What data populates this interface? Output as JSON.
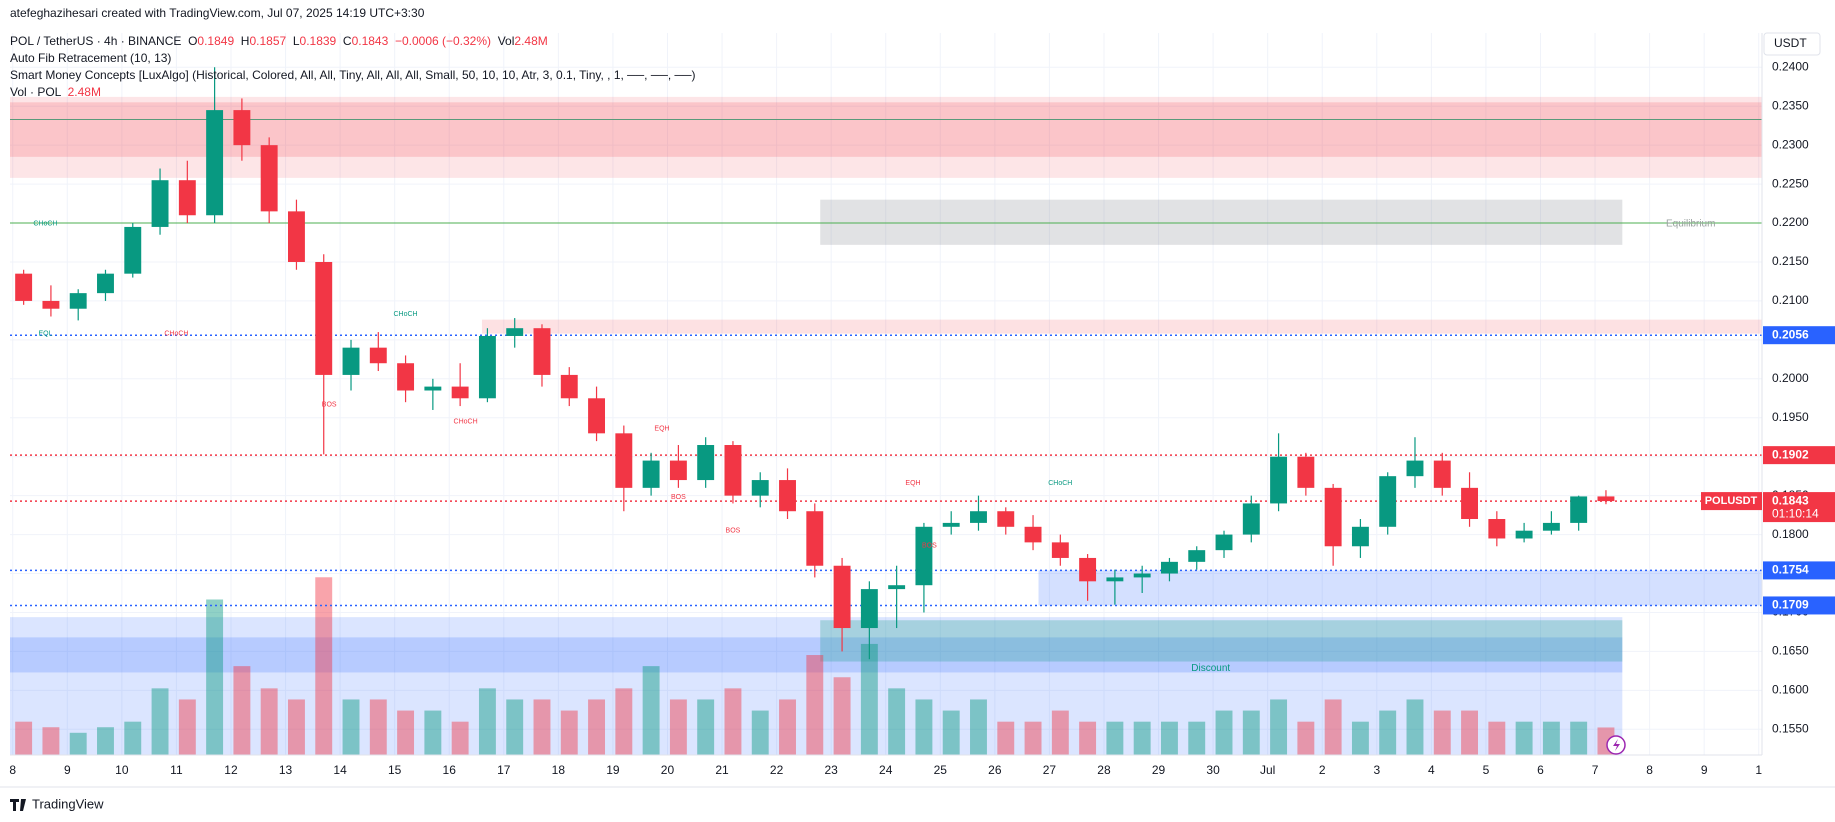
{
  "chart_data": {
    "type": "candlestick",
    "header": {
      "credit": "atefeghazihesari created with TradingView.com, Jul 07, 2025 14:19 UTC+3:30",
      "symbol": "POL / TetherUS · 4h · BINANCE",
      "ohlc_letters": [
        "O",
        "H",
        "L",
        "C"
      ],
      "change": "−0.0006 (−0.32%)",
      "vol_label": "Vol",
      "vol_value": "2.48M",
      "indicators": [
        "Auto Fib Retracement (10, 13)",
        "Smart Money Concepts [LuxAlgo] (Historical, Colored, All, All, Tiny, All, All, All, Small, 50, 10, 10, Atr, 3, 0.1, Tiny, , 1, ──, ──, ──)"
      ],
      "vol_indicator": "Vol · POL",
      "vol_indicator_value": "2.48M",
      "currency": "USDT",
      "brand": "TradingView"
    },
    "x": [
      0.2,
      0.7,
      1.2,
      1.7,
      2.2,
      2.7,
      3.2,
      3.7,
      4.2,
      4.7,
      5.2,
      5.7,
      6.2,
      6.7,
      7.2,
      7.7,
      8.2,
      8.7,
      9.2,
      9.7,
      10.2,
      10.7,
      11.2,
      11.7,
      12.2,
      12.7,
      13.2,
      13.7,
      14.2,
      14.7,
      15.2,
      15.7,
      16.2,
      16.7,
      17.2,
      17.7,
      18.2,
      18.7,
      19.2,
      19.7,
      20.2,
      20.7,
      21.2,
      21.7,
      22.2,
      22.7,
      23.2,
      23.7,
      24.2,
      24.7,
      25.2,
      25.7,
      26.2,
      26.7,
      27.2,
      27.7,
      28.2,
      28.7,
      29.2
    ],
    "ohlc": [
      [
        0.2135,
        0.214,
        0.2095,
        0.21
      ],
      [
        0.21,
        0.212,
        0.208,
        0.209
      ],
      [
        0.209,
        0.2115,
        0.2075,
        0.211
      ],
      [
        0.211,
        0.214,
        0.21,
        0.2135
      ],
      [
        0.2135,
        0.22,
        0.213,
        0.2195
      ],
      [
        0.2195,
        0.227,
        0.2185,
        0.2255
      ],
      [
        0.2255,
        0.228,
        0.22,
        0.221
      ],
      [
        0.221,
        0.24,
        0.22,
        0.2345
      ],
      [
        0.2345,
        0.236,
        0.228,
        0.23
      ],
      [
        0.23,
        0.231,
        0.22,
        0.2215
      ],
      [
        0.2215,
        0.223,
        0.214,
        0.215
      ],
      [
        0.215,
        0.216,
        0.1903,
        0.2005
      ],
      [
        0.2005,
        0.205,
        0.1985,
        0.204
      ],
      [
        0.204,
        0.206,
        0.201,
        0.202
      ],
      [
        0.202,
        0.203,
        0.197,
        0.1985
      ],
      [
        0.1985,
        0.2,
        0.196,
        0.199
      ],
      [
        0.199,
        0.202,
        0.1965,
        0.1975
      ],
      [
        0.1975,
        0.2065,
        0.197,
        0.2055
      ],
      [
        0.2055,
        0.2078,
        0.204,
        0.2065
      ],
      [
        0.2065,
        0.207,
        0.199,
        0.2005
      ],
      [
        0.2005,
        0.2015,
        0.1965,
        0.1975
      ],
      [
        0.1975,
        0.199,
        0.192,
        0.193
      ],
      [
        0.193,
        0.194,
        0.183,
        0.186
      ],
      [
        0.186,
        0.1905,
        0.185,
        0.1895
      ],
      [
        0.1895,
        0.1915,
        0.186,
        0.187
      ],
      [
        0.187,
        0.1925,
        0.186,
        0.1915
      ],
      [
        0.1915,
        0.192,
        0.184,
        0.185
      ],
      [
        0.185,
        0.188,
        0.1835,
        0.187
      ],
      [
        0.187,
        0.1885,
        0.182,
        0.183
      ],
      [
        0.183,
        0.184,
        0.1745,
        0.176
      ],
      [
        0.176,
        0.177,
        0.165,
        0.168
      ],
      [
        0.168,
        0.174,
        0.164,
        0.173
      ],
      [
        0.173,
        0.176,
        0.168,
        0.1735
      ],
      [
        0.1735,
        0.1815,
        0.17,
        0.181
      ],
      [
        0.181,
        0.183,
        0.18,
        0.1815
      ],
      [
        0.1815,
        0.185,
        0.1805,
        0.183
      ],
      [
        0.183,
        0.1835,
        0.18,
        0.181
      ],
      [
        0.181,
        0.1825,
        0.178,
        0.179
      ],
      [
        0.179,
        0.18,
        0.176,
        0.177
      ],
      [
        0.177,
        0.1775,
        0.1715,
        0.174
      ],
      [
        0.174,
        0.1755,
        0.171,
        0.1745
      ],
      [
        0.1745,
        0.176,
        0.1725,
        0.175
      ],
      [
        0.175,
        0.177,
        0.174,
        0.1765
      ],
      [
        0.1765,
        0.1785,
        0.1755,
        0.178
      ],
      [
        0.178,
        0.1805,
        0.177,
        0.18
      ],
      [
        0.18,
        0.185,
        0.179,
        0.184
      ],
      [
        0.184,
        0.193,
        0.183,
        0.19
      ],
      [
        0.19,
        0.1905,
        0.185,
        0.186
      ],
      [
        0.186,
        0.1865,
        0.176,
        0.1785
      ],
      [
        0.1785,
        0.182,
        0.177,
        0.181
      ],
      [
        0.181,
        0.188,
        0.18,
        0.1875
      ],
      [
        0.1875,
        0.1925,
        0.186,
        0.1895
      ],
      [
        0.1895,
        0.1905,
        0.185,
        0.186
      ],
      [
        0.186,
        0.188,
        0.181,
        0.182
      ],
      [
        0.182,
        0.183,
        0.1785,
        0.1795
      ],
      [
        0.1795,
        0.1815,
        0.179,
        0.1805
      ],
      [
        0.1805,
        0.183,
        0.18,
        0.1815
      ],
      [
        0.1815,
        0.185,
        0.1805,
        0.1849
      ],
      [
        0.1849,
        0.1857,
        0.1839,
        0.1843
      ]
    ],
    "volume": [
      3,
      2.5,
      2,
      2.5,
      3,
      6,
      5,
      14,
      8,
      6,
      5,
      16,
      5,
      5,
      4,
      4,
      3,
      6,
      5,
      5,
      4,
      5,
      6,
      8,
      5,
      5,
      6,
      4,
      5,
      9,
      7,
      10,
      6,
      5,
      4,
      5,
      3,
      3,
      4,
      3,
      3,
      3,
      3,
      3,
      4,
      4,
      5,
      3,
      5,
      3,
      4,
      5,
      4,
      4,
      3,
      3,
      3,
      3,
      2.48
    ],
    "up_color": "#089981",
    "down_color": "#f23645",
    "xlim": [
      -0.05,
      32.06
    ],
    "xticks": [
      {
        "value": 0,
        "label": "8"
      },
      {
        "value": 1,
        "label": "9"
      },
      {
        "value": 2,
        "label": "10"
      },
      {
        "value": 3,
        "label": "11"
      },
      {
        "value": 4,
        "label": "12"
      },
      {
        "value": 5,
        "label": "13"
      },
      {
        "value": 6,
        "label": "14"
      },
      {
        "value": 7,
        "label": "15"
      },
      {
        "value": 8,
        "label": "16"
      },
      {
        "value": 9,
        "label": "17"
      },
      {
        "value": 10,
        "label": "18"
      },
      {
        "value": 11,
        "label": "19"
      },
      {
        "value": 12,
        "label": "20"
      },
      {
        "value": 13,
        "label": "21"
      },
      {
        "value": 14,
        "label": "22"
      },
      {
        "value": 15,
        "label": "23"
      },
      {
        "value": 16,
        "label": "24"
      },
      {
        "value": 17,
        "label": "25"
      },
      {
        "value": 18,
        "label": "26"
      },
      {
        "value": 19,
        "label": "27"
      },
      {
        "value": 20,
        "label": "28"
      },
      {
        "value": 21,
        "label": "29"
      },
      {
        "value": 22,
        "label": "30"
      },
      {
        "value": 23,
        "label": "Jul"
      },
      {
        "value": 24,
        "label": "2"
      },
      {
        "value": 25,
        "label": "3"
      },
      {
        "value": 26,
        "label": "4"
      },
      {
        "value": 27,
        "label": "5"
      },
      {
        "value": 28,
        "label": "6"
      },
      {
        "value": 29,
        "label": "7"
      },
      {
        "value": 30,
        "label": "8"
      },
      {
        "value": 31,
        "label": "9"
      },
      {
        "value": 32,
        "label": "1"
      }
    ],
    "ylim": [
      0.1517,
      0.2444
    ],
    "yticks": [
      {
        "value": 0.155,
        "label": "0.1550"
      },
      {
        "value": 0.16,
        "label": "0.1600"
      },
      {
        "value": 0.165,
        "label": "0.1650"
      },
      {
        "value": 0.17,
        "label": "0.1700"
      },
      {
        "value": 0.175,
        "label": "0.1750"
      },
      {
        "value": 0.18,
        "label": "0.1800"
      },
      {
        "value": 0.185,
        "label": "0.1850"
      },
      {
        "value": 0.19,
        "label": "0.1900"
      },
      {
        "value": 0.195,
        "label": "0.1950"
      },
      {
        "value": 0.2,
        "label": "0.2000"
      },
      {
        "value": 0.205,
        "label": "0.2050"
      },
      {
        "value": 0.21,
        "label": "0.2100"
      },
      {
        "value": 0.215,
        "label": "0.2150"
      },
      {
        "value": 0.22,
        "label": "0.2200"
      },
      {
        "value": 0.225,
        "label": "0.2250"
      },
      {
        "value": 0.23,
        "label": "0.2300"
      },
      {
        "value": 0.235,
        "label": "0.2350"
      },
      {
        "value": 0.24,
        "label": "0.2400"
      }
    ],
    "y2lim": [
      0,
      65
    ],
    "grid": true,
    "zones": [
      {
        "x": [
          -0.05,
          32.06
        ],
        "y": [
          0.2258,
          0.2362
        ],
        "color": "rgba(242,54,69,0.13)"
      },
      {
        "x": [
          -0.05,
          32.06
        ],
        "y": [
          0.2285,
          0.2355
        ],
        "color": "rgba(242,54,69,0.18)"
      },
      {
        "x": [
          14.8,
          29.5
        ],
        "y": [
          0.2172,
          0.223
        ],
        "color": "rgba(120,123,134,0.22)"
      },
      {
        "x": [
          8.6,
          32.06
        ],
        "y": [
          0.2058,
          0.2076
        ],
        "color": "rgba(242,54,69,0.15)"
      },
      {
        "x": [
          18.8,
          32.06
        ],
        "y": [
          0.1709,
          0.1754
        ],
        "color": "rgba(41,98,255,0.2)"
      },
      {
        "x": [
          -0.05,
          29.5
        ],
        "y": [
          0.1517,
          0.1694
        ],
        "color": "rgba(41,98,255,0.17)"
      },
      {
        "x": [
          -0.05,
          29.5
        ],
        "y": [
          0.1623,
          0.1668
        ],
        "color": "rgba(41,98,255,0.2)"
      },
      {
        "x": [
          14.8,
          29.5
        ],
        "y": [
          0.1637,
          0.169
        ],
        "color": "rgba(8,153,129,0.25)"
      }
    ],
    "hlines": [
      {
        "value": 0.2333,
        "color": "#5a9a7a",
        "dash": "none"
      },
      {
        "value": 0.22,
        "color": "#4caf50",
        "dash": "none"
      }
    ],
    "price_lines": [
      {
        "value": 0.2056,
        "label": "0.2056",
        "color": "#2962ff"
      },
      {
        "value": 0.1902,
        "label": "0.1902",
        "color": "#f23645"
      },
      {
        "value": 0.1754,
        "label": "0.1754",
        "color": "#2962ff"
      },
      {
        "value": 0.1709,
        "label": "0.1709",
        "color": "#2962ff"
      },
      {
        "value": 0.1843,
        "label": "0.1843",
        "color": "#f23645",
        "name": "POLUSDT",
        "countdown": "01:10:14"
      }
    ],
    "annotations": [
      {
        "text": "CHoCH",
        "x": 0.6,
        "y": 0.2199,
        "color": "#089981"
      },
      {
        "text": "EQL",
        "x": 0.6,
        "y": 0.2058,
        "color": "#089981"
      },
      {
        "text": "CHoCH",
        "x": 3.0,
        "y": 0.2058,
        "color": "#f23645"
      },
      {
        "text": "CHoCH",
        "x": 7.2,
        "y": 0.2083,
        "color": "#089981"
      },
      {
        "text": "BOS",
        "x": 5.8,
        "y": 0.1967,
        "color": "#f23645"
      },
      {
        "text": "CHoCH",
        "x": 8.3,
        "y": 0.1945,
        "color": "#f23645"
      },
      {
        "text": "EQH",
        "x": 11.9,
        "y": 0.1936,
        "color": "#f23645"
      },
      {
        "text": "BOS",
        "x": 12.2,
        "y": 0.1848,
        "color": "#f23645"
      },
      {
        "text": "BOS",
        "x": 13.2,
        "y": 0.1805,
        "color": "#f23645"
      },
      {
        "text": "EQH",
        "x": 16.5,
        "y": 0.1866,
        "color": "#f23645"
      },
      {
        "text": "BOS",
        "x": 16.8,
        "y": 0.1786,
        "color": "#f23645"
      },
      {
        "text": "CHoCH",
        "x": 19.2,
        "y": 0.1866,
        "color": "#089981"
      },
      {
        "text": "Equilibrium",
        "x": 30.3,
        "y": 0.2199,
        "color": "#9aa19f"
      },
      {
        "text": "Discount",
        "x": 21.6,
        "y": 0.1628,
        "color": "#089981"
      }
    ]
  }
}
